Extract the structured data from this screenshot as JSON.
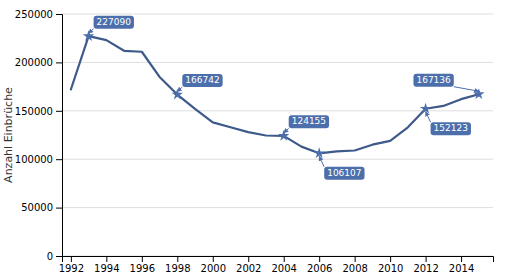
{
  "chart_data": {
    "type": "line",
    "y_label": "Anzahl Einbrüche",
    "x": [
      1992,
      1993,
      1994,
      1995,
      1996,
      1997,
      1998,
      1999,
      2000,
      2001,
      2002,
      2003,
      2004,
      2005,
      2006,
      2007,
      2008,
      2009,
      2010,
      2011,
      2012,
      2013,
      2014,
      2015
    ],
    "values": [
      172000,
      227090,
      223000,
      212000,
      211000,
      185000,
      166742,
      152000,
      138000,
      133000,
      128000,
      124500,
      124155,
      113000,
      106107,
      108000,
      109000,
      115000,
      119000,
      133000,
      152123,
      155000,
      162000,
      167136
    ],
    "color": "#3d5a8a",
    "xlim": [
      1991.5,
      2015.8
    ],
    "ylim": [
      0,
      250000
    ],
    "xticks": [
      1992,
      1994,
      1996,
      1998,
      2000,
      2002,
      2004,
      2006,
      2008,
      2010,
      2012,
      2014
    ],
    "yticks": [
      0,
      50000,
      100000,
      150000,
      200000,
      250000
    ],
    "grid": true,
    "annotations": [
      {
        "x": 1993,
        "y": 227090,
        "text": "227090"
      },
      {
        "x": 1998,
        "y": 166742,
        "text": "166742"
      },
      {
        "x": 2004,
        "y": 124155,
        "text": "124155"
      },
      {
        "x": 2006,
        "y": 106107,
        "text": "106107"
      },
      {
        "x": 2012,
        "y": 152123,
        "text": "152123"
      },
      {
        "x": 2015,
        "y": 167136,
        "text": "167136"
      }
    ]
  }
}
